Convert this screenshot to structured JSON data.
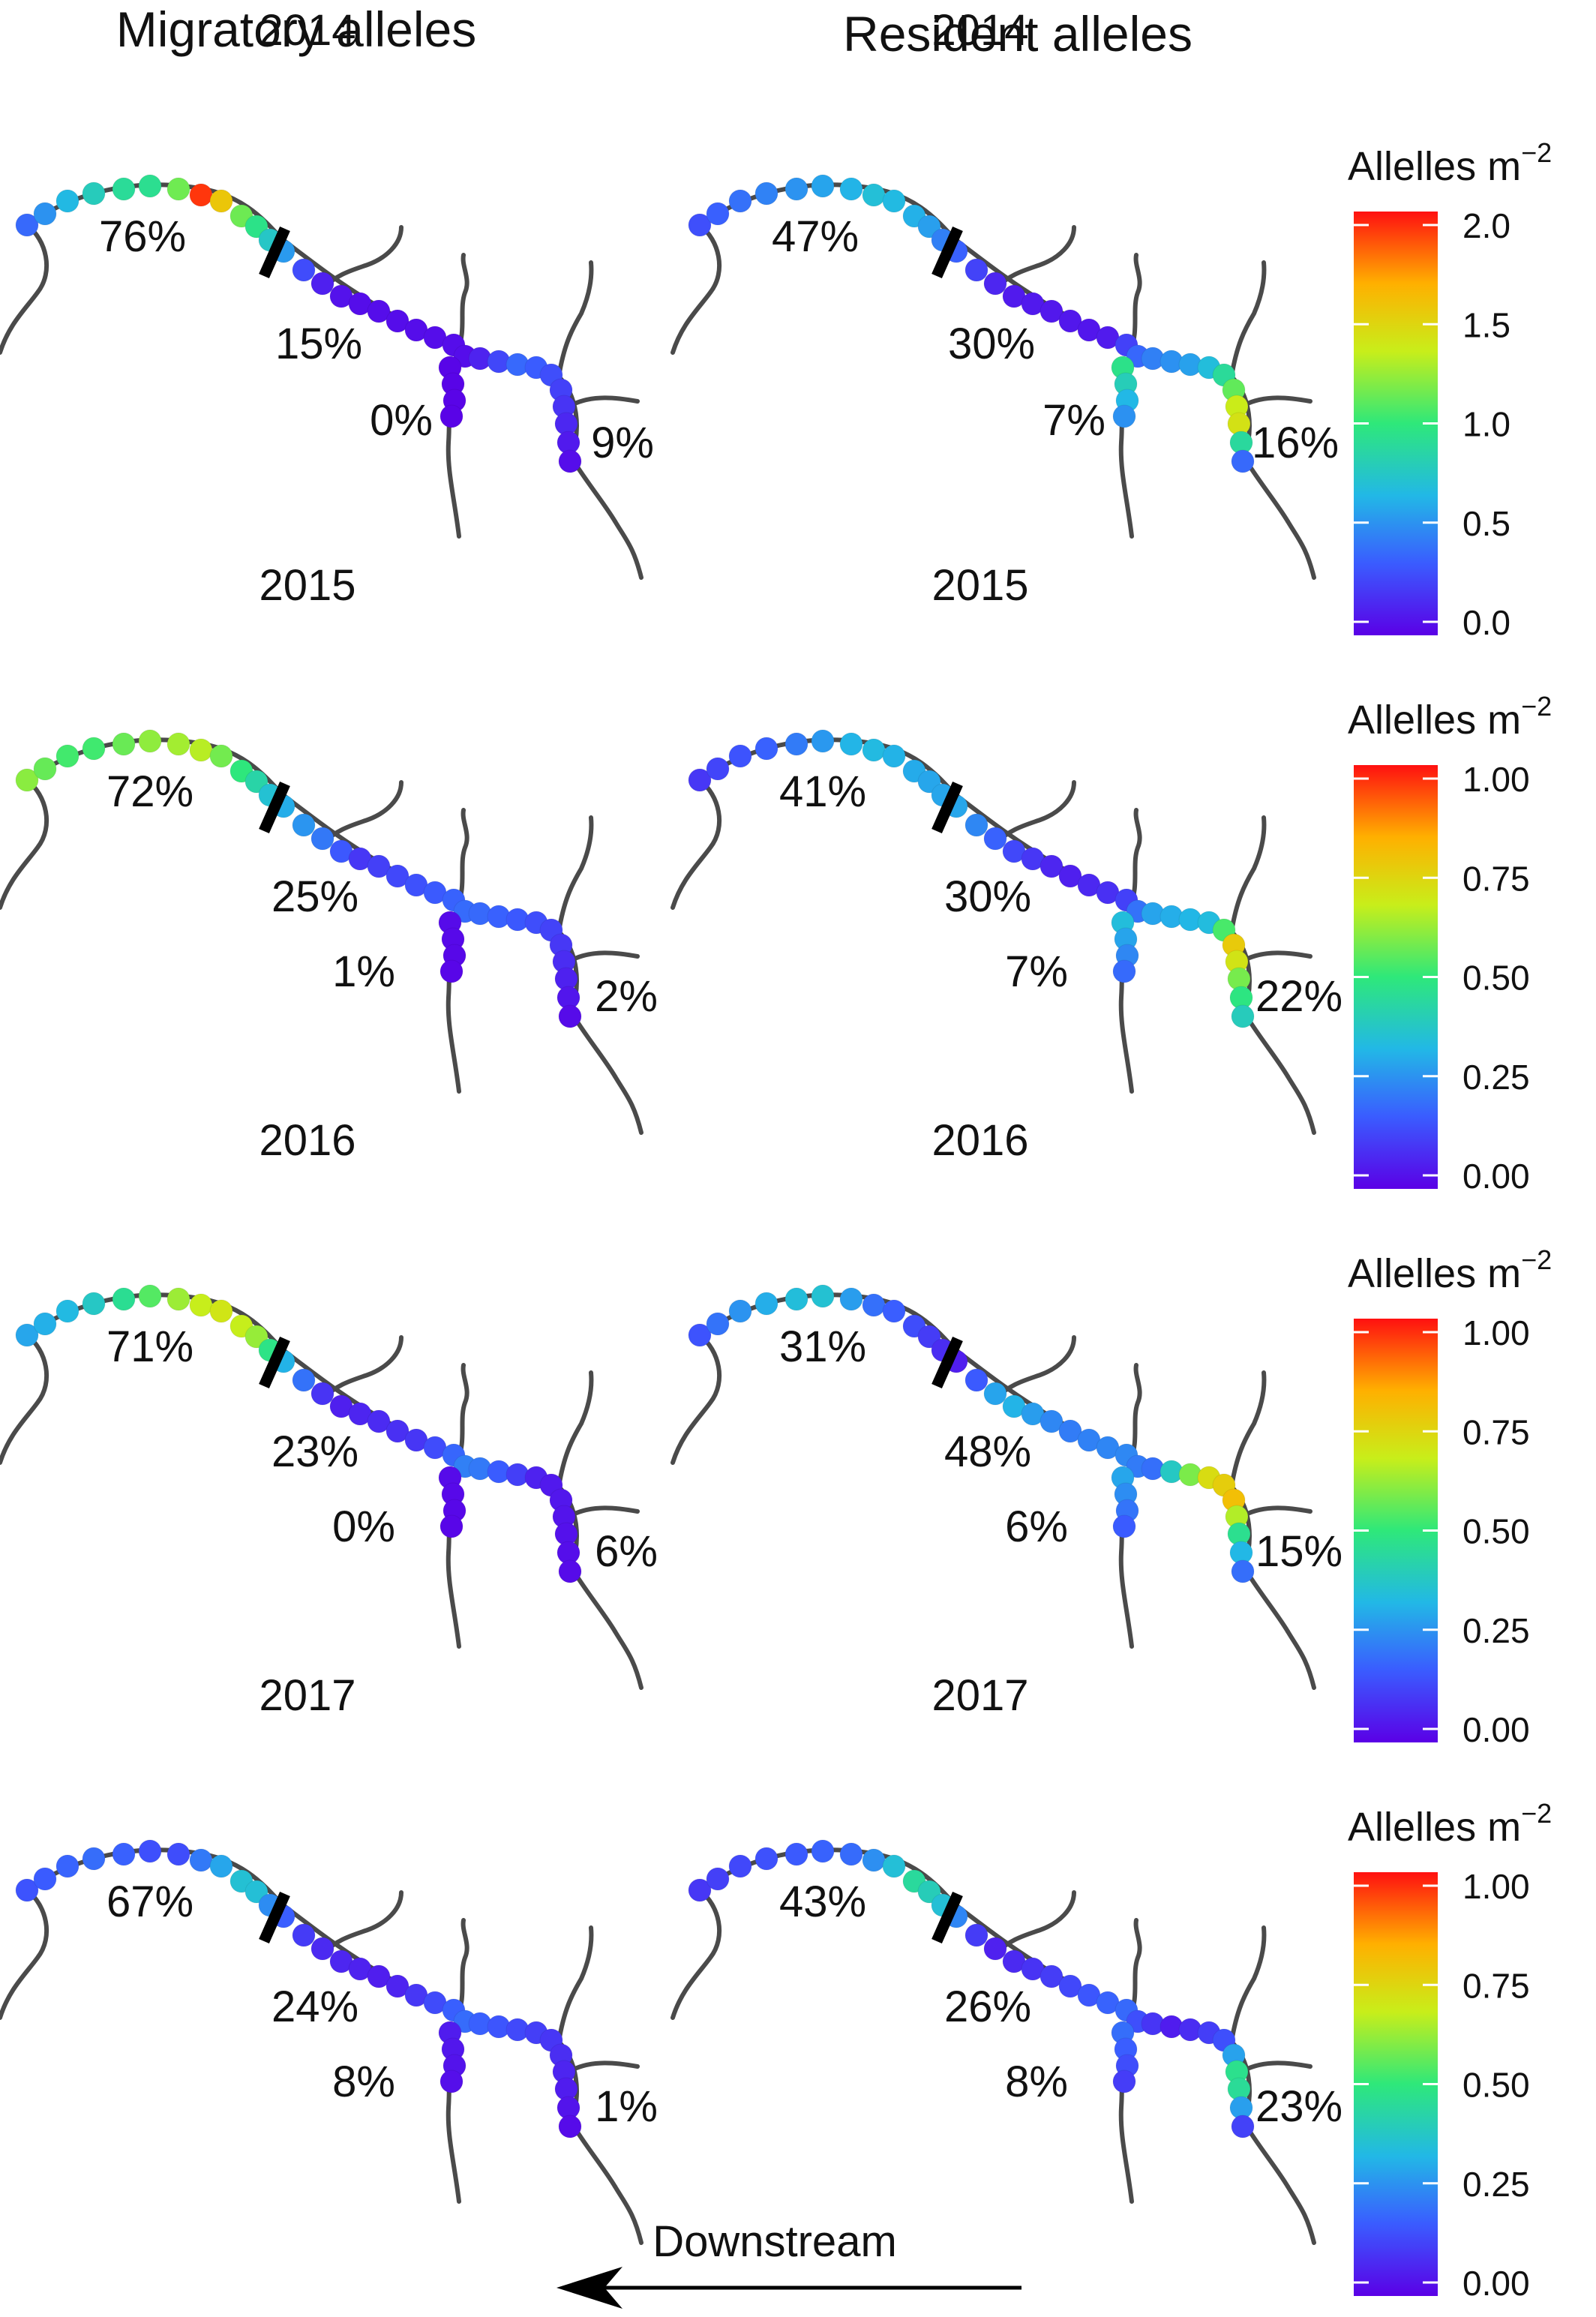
{
  "headers": {
    "migratory": "Migratory alleles",
    "resident": "Resident alleles"
  },
  "direction_label": "Downstream",
  "colorbar_title": "Allelles m",
  "colorbar_title_exponent": "−2",
  "panels": [
    {
      "year": "2014",
      "group": "Migratory",
      "percent_labels": [
        "76%",
        "15%",
        "0%",
        "9%"
      ]
    },
    {
      "year": "2014",
      "group": "Resident",
      "percent_labels": [
        "47%",
        "30%",
        "7%",
        "16%"
      ]
    },
    {
      "year": "2015",
      "group": "Migratory",
      "percent_labels": [
        "72%",
        "25%",
        "1%",
        "2%"
      ]
    },
    {
      "year": "2015",
      "group": "Resident",
      "percent_labels": [
        "41%",
        "30%",
        "7%",
        "22%"
      ]
    },
    {
      "year": "2016",
      "group": "Migratory",
      "percent_labels": [
        "71%",
        "23%",
        "0%",
        "6%"
      ]
    },
    {
      "year": "2016",
      "group": "Resident",
      "percent_labels": [
        "31%",
        "48%",
        "6%",
        "15%"
      ]
    },
    {
      "year": "2017",
      "group": "Migratory",
      "percent_labels": [
        "67%",
        "24%",
        "8%",
        "1%"
      ]
    },
    {
      "year": "2017",
      "group": "Resident",
      "percent_labels": [
        "43%",
        "26%",
        "8%",
        "23%"
      ]
    }
  ],
  "colorbars": [
    {
      "ticks": [
        "2.0",
        "1.5",
        "1.0",
        "0.5",
        "0.0"
      ]
    },
    {
      "ticks": [
        "1.00",
        "0.75",
        "0.50",
        "0.25",
        "0.00"
      ]
    },
    {
      "ticks": [
        "1.00",
        "0.75",
        "0.50",
        "0.25",
        "0.00"
      ]
    },
    {
      "ticks": [
        "1.00",
        "0.75",
        "0.50",
        "0.25",
        "0.00"
      ]
    }
  ],
  "colormap": [
    "#5a00e6",
    "#3a5cff",
    "#22b8e6",
    "#2ee87a",
    "#c8ee1a",
    "#ffb000",
    "#ff1010"
  ]
}
